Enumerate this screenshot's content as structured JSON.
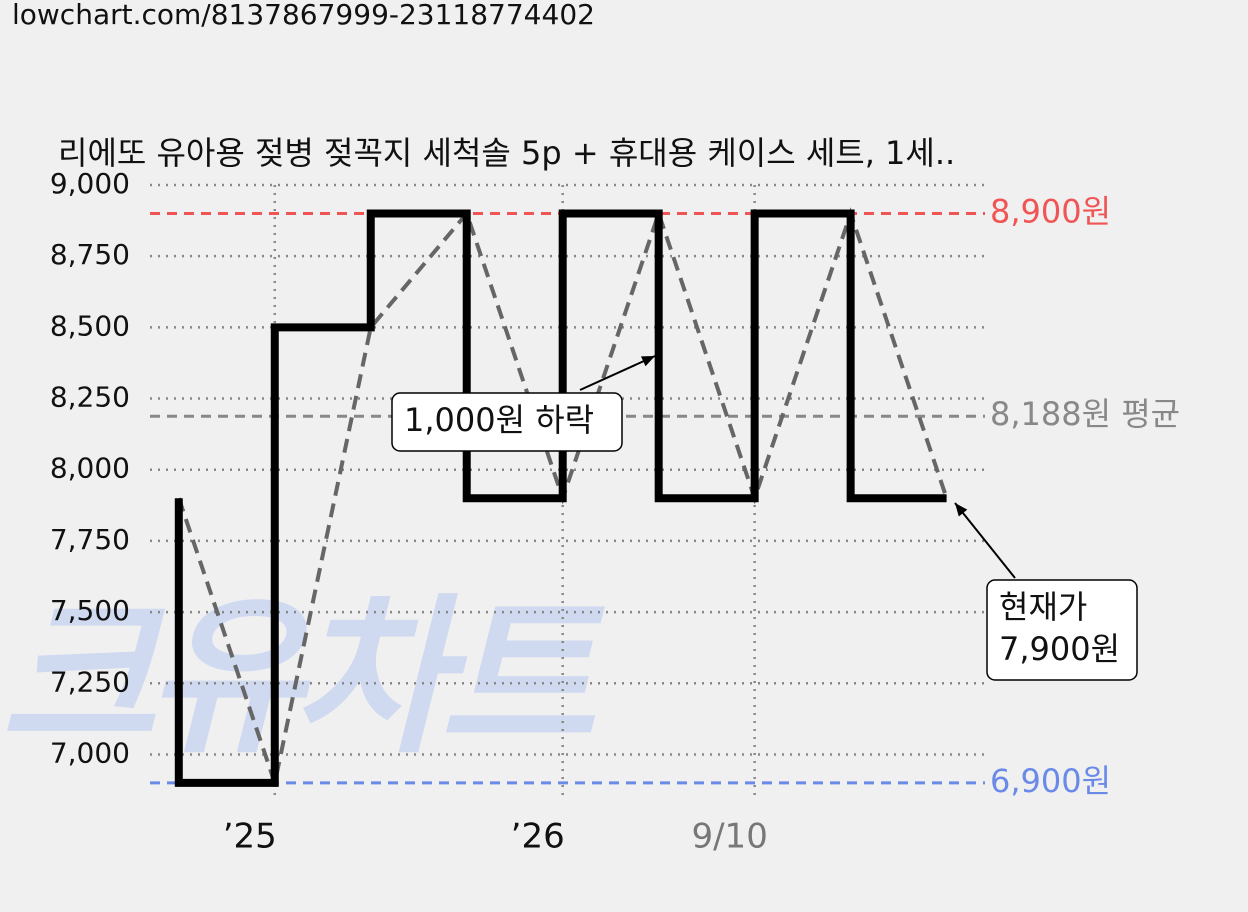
{
  "url": "lowchart.com/8137867999-23118774402",
  "chart_data": {
    "type": "step-line",
    "title": "리에또 유아용 젖병 젖꼭지 세척솔 5p + 휴대용 케이스 세트, 1세..",
    "watermark": "크유차트",
    "x": [
      0,
      1,
      2,
      3,
      4,
      5,
      6,
      7,
      8
    ],
    "xlim": [
      -0.3,
      8.4
    ],
    "xticks": [
      {
        "value": 1,
        "label": "’25"
      },
      {
        "value": 4,
        "label": "’26"
      },
      {
        "value": 6,
        "label": "9/10"
      }
    ],
    "series": [
      {
        "color": "#000000",
        "trend_color": "#666666",
        "values": [
          7900,
          6900,
          8500,
          8900,
          7900,
          8900,
          7900,
          8900,
          7900
        ]
      }
    ],
    "ylim": [
      6840,
      9000
    ],
    "yticks": [
      {
        "value": 7000,
        "label": "7,000"
      },
      {
        "value": 7250,
        "label": "7,250"
      },
      {
        "value": 7500,
        "label": "7,500"
      },
      {
        "value": 7750,
        "label": "7,750"
      },
      {
        "value": 8000,
        "label": "8,000"
      },
      {
        "value": 8250,
        "label": "8,250"
      },
      {
        "value": 8500,
        "label": "8,500"
      },
      {
        "value": 8750,
        "label": "8,750"
      },
      {
        "value": 9000,
        "label": "9,000"
      }
    ],
    "grid": true,
    "reference_lines": [
      {
        "value": 8900,
        "label": "8,900원",
        "color": "#f05555"
      },
      {
        "value": 8188,
        "label": "8,188원 평균",
        "color": "#888888"
      },
      {
        "value": 6900,
        "label": "6,900원",
        "color": "#6a8ae8"
      }
    ],
    "annotations": [
      {
        "lines": [
          "1,000원 하락"
        ]
      },
      {
        "lines": [
          "현재가",
          "7,900원"
        ]
      }
    ]
  }
}
